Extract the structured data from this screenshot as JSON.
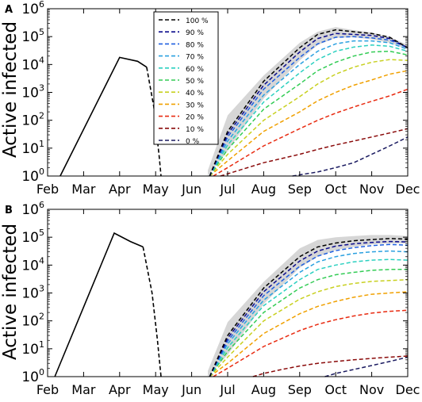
{
  "months": [
    "Feb",
    "Mar",
    "Apr",
    "May",
    "Jun",
    "Jul",
    "Aug",
    "Sep",
    "Oct",
    "Nov",
    "Dec"
  ],
  "ylabel": "Active infected",
  "legend": {
    "labels": [
      "100 %",
      "90 %",
      "80 %",
      "70 %",
      "60 %",
      "50 %",
      "40 %",
      "30 %",
      "20 %",
      "10 %",
      "0 %"
    ],
    "colors": [
      "#000000",
      "#0a0a8c",
      "#1f5fe0",
      "#2aa0e0",
      "#2bd0c0",
      "#33cc55",
      "#c8d020",
      "#f0a000",
      "#e82a10",
      "#8a0a0a",
      "#1a1a60"
    ]
  },
  "chart_data": [
    {
      "panel": "A",
      "type": "line",
      "x_unit": "month index (0 = Feb 1)",
      "xlim": [
        0,
        10
      ],
      "yscale": "log",
      "ylim": [
        1,
        1000000
      ],
      "yticks": [
        {
          "base": "10",
          "exp": "0"
        },
        {
          "base": "10",
          "exp": "1"
        },
        {
          "base": "10",
          "exp": "2"
        },
        {
          "base": "10",
          "exp": "3"
        },
        {
          "base": "10",
          "exp": "4"
        },
        {
          "base": "10",
          "exp": "5"
        },
        {
          "base": "10",
          "exp": "6"
        }
      ],
      "observed": {
        "x": [
          0.35,
          2.0,
          2.5,
          2.75
        ],
        "y": [
          1,
          18000,
          13000,
          8000
        ]
      },
      "observed_tail": {
        "x": [
          2.75,
          2.95,
          3.1,
          3.15
        ],
        "y": [
          8000,
          300,
          5,
          1
        ]
      },
      "band": {
        "x": [
          4.45,
          5.0,
          6.0,
          7.0,
          7.5,
          8.0,
          8.5,
          9.0,
          9.5,
          10.0
        ],
        "upper": [
          1.6,
          150,
          4000,
          60000,
          150000,
          220000,
          170000,
          140000,
          100000,
          50000
        ],
        "lower": [
          1,
          8,
          600,
          14000,
          50000,
          90000,
          95000,
          80000,
          60000,
          35000
        ]
      },
      "series": [
        {
          "name": "100 %",
          "x": [
            4.5,
            5.0,
            6.0,
            7.0,
            7.5,
            8.0,
            8.5,
            9.0,
            9.5,
            10.0
          ],
          "y": [
            1,
            40,
            2500,
            40000,
            120000,
            175000,
            150000,
            130000,
            95000,
            40000
          ]
        },
        {
          "name": "90 %",
          "x": [
            4.5,
            5.0,
            6.0,
            7.0,
            7.5,
            8.0,
            8.5,
            9.0,
            9.5,
            10.0
          ],
          "y": [
            1,
            32,
            1800,
            28000,
            85000,
            130000,
            120000,
            110000,
            85000,
            40000
          ]
        },
        {
          "name": "80 %",
          "x": [
            4.5,
            5.0,
            6.0,
            7.0,
            7.5,
            8.0,
            8.5,
            9.0,
            9.5,
            10.0
          ],
          "y": [
            1,
            25,
            1300,
            18000,
            55000,
            95000,
            100000,
            90000,
            75000,
            40000
          ]
        },
        {
          "name": "70 %",
          "x": [
            4.5,
            5.0,
            6.0,
            7.0,
            7.5,
            8.0,
            8.5,
            9.0,
            9.5,
            10.0
          ],
          "y": [
            1,
            18,
            800,
            10000,
            30000,
            55000,
            70000,
            70000,
            60000,
            35000
          ]
        },
        {
          "name": "60 %",
          "x": [
            4.5,
            5.0,
            6.0,
            7.0,
            7.5,
            8.0,
            8.5,
            9.0,
            9.5,
            10.0
          ],
          "y": [
            1,
            13,
            450,
            5000,
            15000,
            30000,
            42000,
            50000,
            45000,
            30000
          ]
        },
        {
          "name": "50 %",
          "x": [
            4.5,
            5.0,
            6.0,
            7.0,
            7.5,
            8.0,
            8.5,
            9.0,
            9.5,
            10.0
          ],
          "y": [
            1,
            9,
            250,
            2000,
            6000,
            12000,
            20000,
            28000,
            30000,
            22000
          ]
        },
        {
          "name": "40 %",
          "x": [
            4.5,
            5.0,
            6.0,
            7.0,
            7.5,
            8.0,
            8.5,
            9.0,
            9.5,
            10.0
          ],
          "y": [
            1,
            6,
            100,
            700,
            2000,
            4500,
            8000,
            12000,
            15000,
            14000
          ]
        },
        {
          "name": "30 %",
          "x": [
            4.5,
            5.0,
            6.0,
            7.0,
            7.5,
            8.0,
            8.5,
            9.0,
            9.5,
            10.0
          ],
          "y": [
            1,
            3.5,
            40,
            200,
            500,
            1000,
            1800,
            2800,
            4500,
            6000
          ]
        },
        {
          "name": "20 %",
          "x": [
            4.6,
            5.0,
            6.0,
            7.0,
            7.5,
            8.0,
            8.5,
            9.0,
            9.5,
            10.0
          ],
          "y": [
            1,
            2,
            12,
            50,
            100,
            180,
            300,
            480,
            750,
            1300
          ]
        },
        {
          "name": "10 %",
          "x": [
            4.8,
            5.0,
            6.0,
            7.0,
            7.5,
            8.0,
            8.5,
            9.0,
            9.5,
            10.0
          ],
          "y": [
            1,
            1.2,
            3,
            6,
            9,
            13,
            18,
            25,
            35,
            50
          ]
        },
        {
          "name": "0 %",
          "x": [
            6.8,
            7.0,
            7.5,
            8.0,
            8.5,
            9.0,
            9.5,
            10.0
          ],
          "y": [
            1,
            1.1,
            1.4,
            2,
            3,
            6,
            12,
            25
          ]
        }
      ]
    },
    {
      "panel": "B",
      "type": "line",
      "x_unit": "month index (0 = Feb 1)",
      "xlim": [
        0,
        10
      ],
      "yscale": "log",
      "ylim": [
        1,
        1000000
      ],
      "yticks": [
        {
          "base": "10",
          "exp": "0"
        },
        {
          "base": "10",
          "exp": "1"
        },
        {
          "base": "10",
          "exp": "2"
        },
        {
          "base": "10",
          "exp": "3"
        },
        {
          "base": "10",
          "exp": "4"
        },
        {
          "base": "10",
          "exp": "5"
        },
        {
          "base": "10",
          "exp": "6"
        }
      ],
      "observed": {
        "x": [
          0.2,
          1.85,
          2.3,
          2.65
        ],
        "y": [
          1,
          140000,
          70000,
          45000
        ]
      },
      "observed_tail": {
        "x": [
          2.65,
          2.9,
          3.05,
          3.15
        ],
        "y": [
          45000,
          1000,
          20,
          1
        ]
      },
      "band": {
        "x": [
          4.45,
          5.0,
          6.0,
          7.0,
          7.5,
          8.0,
          8.5,
          9.0,
          9.5,
          10.0
        ],
        "upper": [
          1.6,
          90,
          2500,
          40000,
          80000,
          100000,
          110000,
          120000,
          120000,
          110000
        ],
        "lower": [
          1,
          6,
          400,
          8000,
          20000,
          35000,
          45000,
          55000,
          60000,
          60000
        ]
      },
      "series": [
        {
          "name": "100 %",
          "x": [
            4.5,
            5.0,
            6.0,
            7.0,
            7.5,
            8.0,
            8.5,
            9.0,
            9.5,
            10.0
          ],
          "y": [
            1,
            30,
            1500,
            20000,
            45000,
            62000,
            75000,
            82000,
            90000,
            85000
          ]
        },
        {
          "name": "90 %",
          "x": [
            4.5,
            5.0,
            6.0,
            7.0,
            7.5,
            8.0,
            8.5,
            9.0,
            9.5,
            10.0
          ],
          "y": [
            1,
            24,
            1100,
            14000,
            32000,
            48000,
            58000,
            65000,
            70000,
            68000
          ]
        },
        {
          "name": "80 %",
          "x": [
            4.5,
            5.0,
            6.0,
            7.0,
            7.5,
            8.0,
            8.5,
            9.0,
            9.5,
            10.0
          ],
          "y": [
            1,
            19,
            800,
            9000,
            21000,
            33000,
            42000,
            50000,
            55000,
            52000
          ]
        },
        {
          "name": "70 %",
          "x": [
            4.5,
            5.0,
            6.0,
            7.0,
            7.5,
            8.0,
            8.5,
            9.0,
            9.5,
            10.0
          ],
          "y": [
            1,
            15,
            550,
            5500,
            13000,
            20000,
            26000,
            30000,
            32000,
            30000
          ]
        },
        {
          "name": "60 %",
          "x": [
            4.5,
            5.0,
            6.0,
            7.0,
            7.5,
            8.0,
            8.5,
            9.0,
            9.5,
            10.0
          ],
          "y": [
            1,
            11,
            350,
            3000,
            7000,
            10000,
            13000,
            15000,
            16000,
            15000
          ]
        },
        {
          "name": "50 %",
          "x": [
            4.5,
            5.0,
            6.0,
            7.0,
            7.5,
            8.0,
            8.5,
            9.0,
            9.5,
            10.0
          ],
          "y": [
            1,
            8,
            200,
            1500,
            3000,
            4500,
            5500,
            6500,
            7000,
            7000
          ]
        },
        {
          "name": "40 %",
          "x": [
            4.5,
            5.0,
            6.0,
            7.0,
            7.5,
            8.0,
            8.5,
            9.0,
            9.5,
            10.0
          ],
          "y": [
            1,
            5,
            100,
            600,
            1100,
            1700,
            2200,
            2600,
            2800,
            3000
          ]
        },
        {
          "name": "30 %",
          "x": [
            4.5,
            5.0,
            6.0,
            7.0,
            7.5,
            8.0,
            8.5,
            9.0,
            9.5,
            10.0
          ],
          "y": [
            1,
            3,
            35,
            180,
            330,
            500,
            700,
            900,
            1000,
            1100
          ]
        },
        {
          "name": "20 %",
          "x": [
            4.6,
            5.0,
            6.0,
            7.0,
            7.5,
            8.0,
            8.5,
            9.0,
            9.5,
            10.0
          ],
          "y": [
            1,
            2,
            12,
            45,
            75,
            110,
            150,
            190,
            220,
            240
          ]
        },
        {
          "name": "10 %",
          "x": [
            5.7,
            6.0,
            6.5,
            7.0,
            7.5,
            8.0,
            8.5,
            9.0,
            9.5,
            10.0
          ],
          "y": [
            1,
            1.3,
            1.8,
            2.4,
            3,
            3.5,
            4,
            4.5,
            5,
            5.5
          ]
        },
        {
          "name": "0 %",
          "x": [
            7.7,
            8.0,
            8.5,
            9.0,
            9.5,
            10.0
          ],
          "y": [
            1,
            1.3,
            1.8,
            2.5,
            3.5,
            5
          ]
        }
      ]
    }
  ]
}
